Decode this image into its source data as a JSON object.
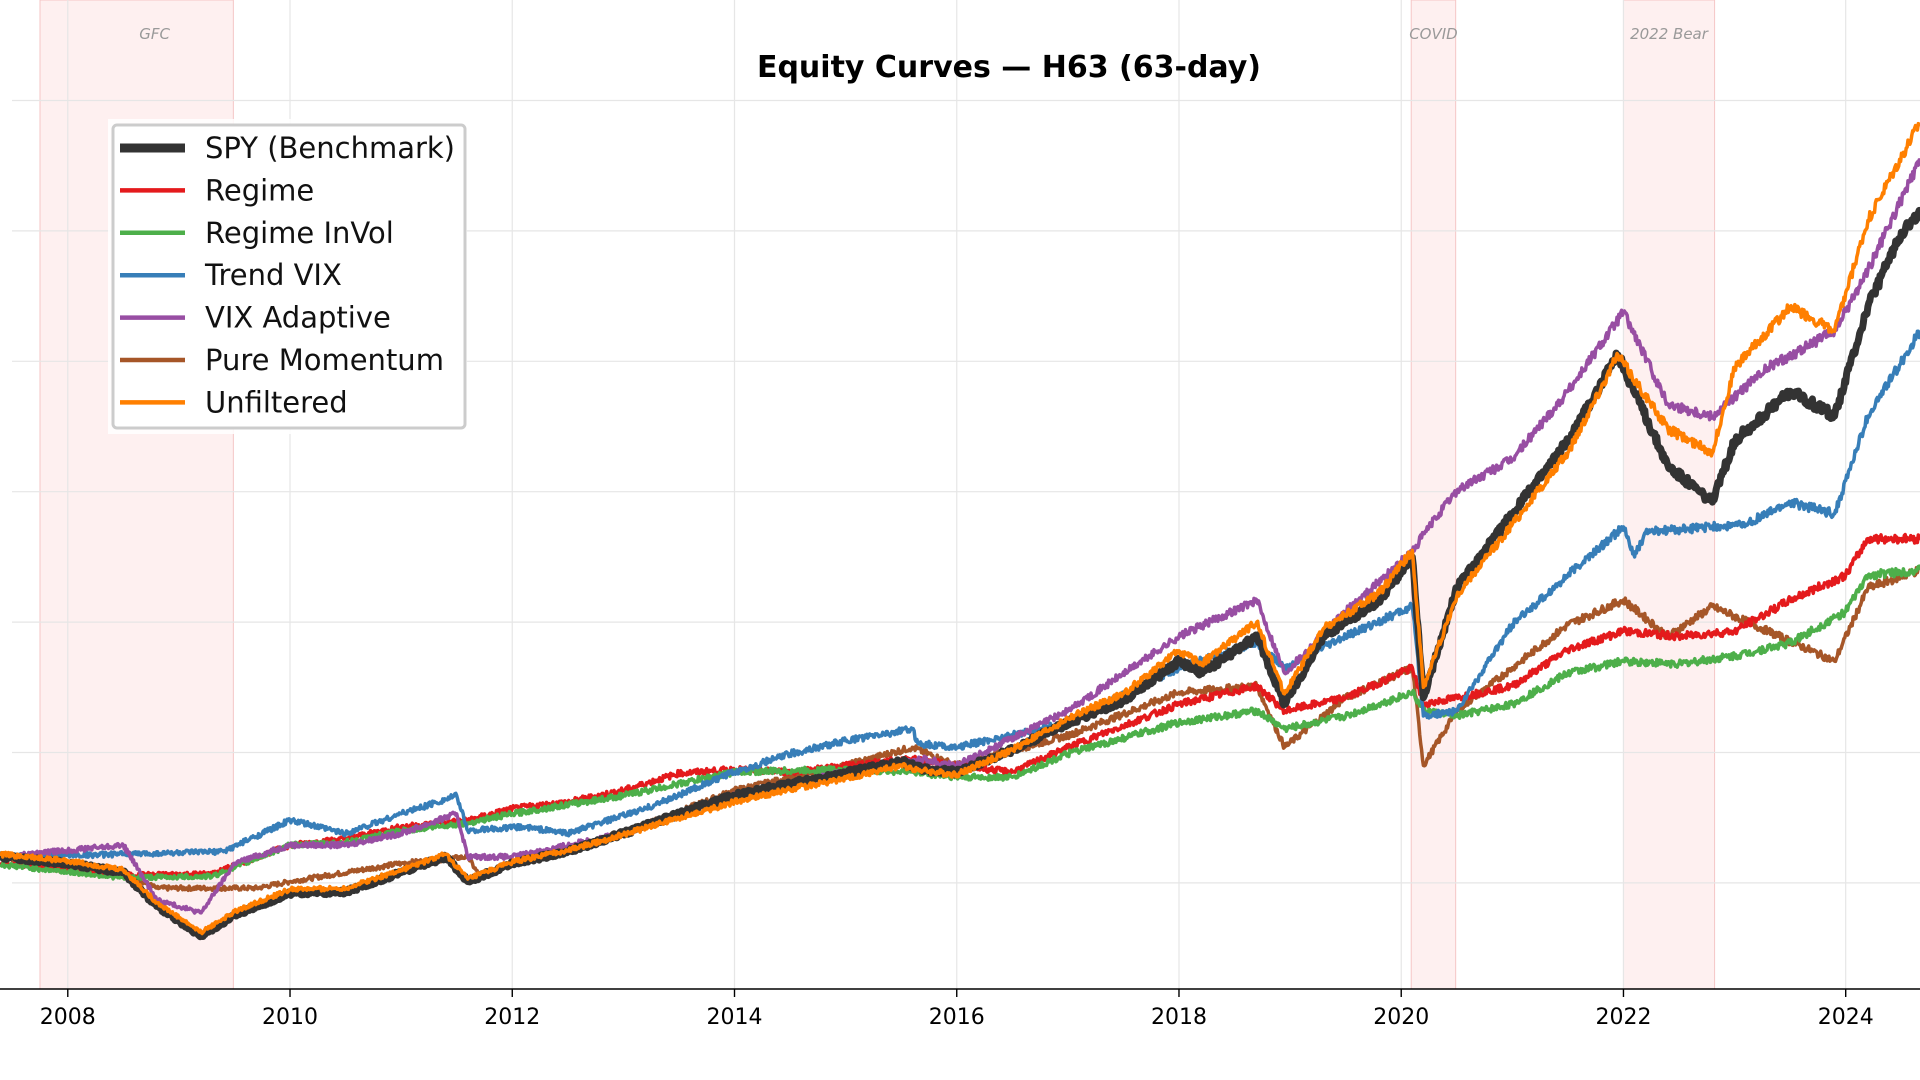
{
  "chart_data": {
    "type": "line",
    "title": "Equity Curves — H63 (63-day)",
    "xlabel": "",
    "ylabel": "",
    "xlim": [
      2007.39,
      2024.67
    ],
    "ylim": [
      0.18,
      7.6
    ],
    "x_ticks": [
      "2008",
      "2010",
      "2012",
      "2014",
      "2016",
      "2018",
      "2020",
      "2022",
      "2024"
    ],
    "y_gridlines": [
      1,
      2,
      3,
      4,
      5,
      6,
      7
    ],
    "grid": true,
    "legend_position": "top-left",
    "shaded_regions": [
      {
        "label": "GFC",
        "start": 2007.75,
        "end": 2009.49,
        "color": "#fde4e4"
      },
      {
        "label": "COVID",
        "start": 2020.09,
        "end": 2020.49,
        "color": "#fde4e4"
      },
      {
        "label": "2022 Bear",
        "start": 2022.0,
        "end": 2022.82,
        "color": "#fde4e4"
      }
    ],
    "series": [
      {
        "name": "SPY (Benchmark)",
        "color": "#333333",
        "width": 7,
        "x": [
          2007.39,
          2008.0,
          2008.5,
          2008.8,
          2009.2,
          2009.5,
          2010.0,
          2010.5,
          2011.0,
          2011.4,
          2011.6,
          2012.0,
          2012.5,
          2013.0,
          2013.5,
          2014.0,
          2014.5,
          2015.0,
          2015.5,
          2015.7,
          2016.0,
          2016.5,
          2017.0,
          2017.5,
          2018.0,
          2018.2,
          2018.7,
          2018.95,
          2019.3,
          2019.8,
          2020.1,
          2020.2,
          2020.5,
          2021.0,
          2021.5,
          2021.95,
          2022.4,
          2022.8,
          2023.0,
          2023.5,
          2023.9,
          2024.2,
          2024.5,
          2024.67
        ],
        "y": [
          1.2,
          1.15,
          1.08,
          0.82,
          0.59,
          0.75,
          0.92,
          0.93,
          1.08,
          1.2,
          1.01,
          1.15,
          1.24,
          1.38,
          1.53,
          1.67,
          1.76,
          1.84,
          1.93,
          1.87,
          1.85,
          2.02,
          2.23,
          2.4,
          2.7,
          2.61,
          2.89,
          2.37,
          2.89,
          3.17,
          3.5,
          2.42,
          3.26,
          3.83,
          4.39,
          5.05,
          4.2,
          3.92,
          4.39,
          4.77,
          4.58,
          5.42,
          5.99,
          6.13
        ]
      },
      {
        "name": "Regime",
        "color": "#e41a1c",
        "width": 3.5,
        "x": [
          2007.39,
          2008.5,
          2009.3,
          2010.0,
          2010.5,
          2011.0,
          2011.6,
          2012.0,
          2012.5,
          2013.0,
          2013.5,
          2014.0,
          2014.5,
          2015.0,
          2015.6,
          2016.0,
          2016.5,
          2017.0,
          2018.0,
          2018.7,
          2018.95,
          2019.5,
          2020.1,
          2020.2,
          2020.5,
          2021.0,
          2021.5,
          2022.0,
          2022.5,
          2023.0,
          2023.5,
          2024.0,
          2024.2,
          2024.67
        ],
        "y": [
          1.15,
          1.06,
          1.07,
          1.29,
          1.34,
          1.43,
          1.48,
          1.57,
          1.62,
          1.71,
          1.84,
          1.87,
          1.85,
          1.9,
          1.95,
          1.9,
          1.85,
          2.04,
          2.37,
          2.51,
          2.32,
          2.42,
          2.65,
          2.37,
          2.42,
          2.51,
          2.79,
          2.93,
          2.89,
          2.93,
          3.17,
          3.36,
          3.64,
          3.64
        ]
      },
      {
        "name": "Regime InVol",
        "color": "#4daf4a",
        "width": 3.5,
        "x": [
          2007.39,
          2008.5,
          2009.3,
          2010.0,
          2010.5,
          2011.0,
          2011.6,
          2012.0,
          2013.0,
          2014.0,
          2015.0,
          2015.6,
          2016.0,
          2016.5,
          2017.0,
          2018.0,
          2018.7,
          2018.95,
          2019.5,
          2020.1,
          2020.2,
          2020.5,
          2021.0,
          2021.5,
          2022.0,
          2022.5,
          2023.0,
          2023.5,
          2024.0,
          2024.2,
          2024.67
        ],
        "y": [
          1.14,
          1.04,
          1.05,
          1.29,
          1.31,
          1.4,
          1.46,
          1.53,
          1.67,
          1.85,
          1.87,
          1.85,
          1.81,
          1.81,
          1.99,
          2.23,
          2.32,
          2.18,
          2.28,
          2.46,
          2.32,
          2.28,
          2.37,
          2.61,
          2.7,
          2.68,
          2.74,
          2.84,
          3.08,
          3.36,
          3.4
        ]
      },
      {
        "name": "Trend VIX",
        "color": "#377eb8",
        "width": 3.5,
        "x": [
          2007.39,
          2008.5,
          2009.4,
          2010.0,
          2010.5,
          2011.0,
          2011.5,
          2011.6,
          2012.1,
          2012.5,
          2013.2,
          2014.0,
          2014.5,
          2015.0,
          2015.6,
          2015.65,
          2016.0,
          2017.0,
          2018.0,
          2018.7,
          2018.95,
          2019.5,
          2020.1,
          2020.2,
          2020.5,
          2021.0,
          2021.5,
          2022.0,
          2022.1,
          2022.2,
          2023.1,
          2023.5,
          2023.9,
          2024.2,
          2024.67
        ],
        "y": [
          1.2,
          1.22,
          1.24,
          1.48,
          1.38,
          1.53,
          1.67,
          1.4,
          1.43,
          1.38,
          1.57,
          1.85,
          1.99,
          2.09,
          2.18,
          2.07,
          2.04,
          2.23,
          2.65,
          2.84,
          2.65,
          2.89,
          3.12,
          2.28,
          2.32,
          2.98,
          3.36,
          3.73,
          3.5,
          3.69,
          3.75,
          3.92,
          3.83,
          4.58,
          5.23
        ]
      },
      {
        "name": "VIX Adaptive",
        "color": "#984ea3",
        "width": 3.5,
        "x": [
          2007.39,
          2008.5,
          2008.8,
          2009.2,
          2009.5,
          2010.0,
          2010.5,
          2011.0,
          2011.5,
          2011.6,
          2012.0,
          2013.0,
          2014.0,
          2015.0,
          2015.7,
          2016.0,
          2017.0,
          2018.0,
          2018.7,
          2018.95,
          2019.5,
          2020.1,
          2020.25,
          2020.5,
          2021.0,
          2021.5,
          2022.0,
          2022.4,
          2022.8,
          2023.3,
          2023.9,
          2024.2,
          2024.67
        ],
        "y": [
          1.2,
          1.29,
          0.87,
          0.77,
          1.15,
          1.29,
          1.29,
          1.38,
          1.53,
          1.2,
          1.2,
          1.38,
          1.67,
          1.85,
          1.95,
          1.9,
          2.32,
          2.89,
          3.17,
          2.61,
          3.08,
          3.54,
          3.73,
          4.01,
          4.25,
          4.77,
          5.38,
          4.67,
          4.58,
          4.95,
          5.23,
          5.7,
          6.54
        ]
      },
      {
        "name": "Pure Momentum",
        "color": "#a65628",
        "width": 3.5,
        "x": [
          2007.39,
          2008.5,
          2008.8,
          2009.7,
          2010.0,
          2011.0,
          2011.6,
          2011.7,
          2012.0,
          2013.0,
          2014.0,
          2015.0,
          2015.6,
          2016.0,
          2017.0,
          2018.0,
          2018.7,
          2018.95,
          2019.5,
          2020.1,
          2020.2,
          2020.5,
          2021.0,
          2021.5,
          2022.0,
          2022.4,
          2022.8,
          2023.3,
          2023.9,
          2024.2,
          2024.67
        ],
        "y": [
          1.2,
          1.08,
          0.96,
          0.96,
          1.01,
          1.15,
          1.2,
          1.06,
          1.15,
          1.38,
          1.71,
          1.9,
          2.04,
          1.9,
          2.13,
          2.46,
          2.51,
          2.04,
          2.42,
          2.65,
          1.9,
          2.32,
          2.65,
          2.98,
          3.17,
          2.89,
          3.12,
          2.93,
          2.7,
          3.26,
          3.4
        ]
      },
      {
        "name": "Unfiltered",
        "color": "#ff7f00",
        "width": 3.5,
        "x": [
          2007.39,
          2008.0,
          2008.5,
          2008.8,
          2009.2,
          2009.5,
          2010.0,
          2010.5,
          2011.0,
          2011.4,
          2011.6,
          2012.0,
          2012.5,
          2013.0,
          2013.5,
          2014.0,
          2014.5,
          2015.0,
          2015.5,
          2015.7,
          2016.0,
          2016.5,
          2017.0,
          2017.5,
          2018.0,
          2018.2,
          2018.7,
          2018.95,
          2019.3,
          2019.8,
          2020.1,
          2020.2,
          2020.5,
          2021.0,
          2021.5,
          2021.95,
          2022.4,
          2022.8,
          2023.0,
          2023.5,
          2023.9,
          2024.2,
          2024.67
        ],
        "y": [
          1.22,
          1.17,
          1.1,
          0.85,
          0.62,
          0.78,
          0.95,
          0.96,
          1.1,
          1.22,
          1.03,
          1.16,
          1.25,
          1.37,
          1.5,
          1.62,
          1.72,
          1.8,
          1.9,
          1.86,
          1.83,
          2.02,
          2.26,
          2.45,
          2.78,
          2.68,
          3.0,
          2.45,
          2.95,
          3.22,
          3.55,
          2.5,
          3.2,
          3.75,
          4.3,
          5.05,
          4.48,
          4.3,
          4.95,
          5.42,
          5.23,
          6.08,
          6.83
        ]
      }
    ]
  }
}
